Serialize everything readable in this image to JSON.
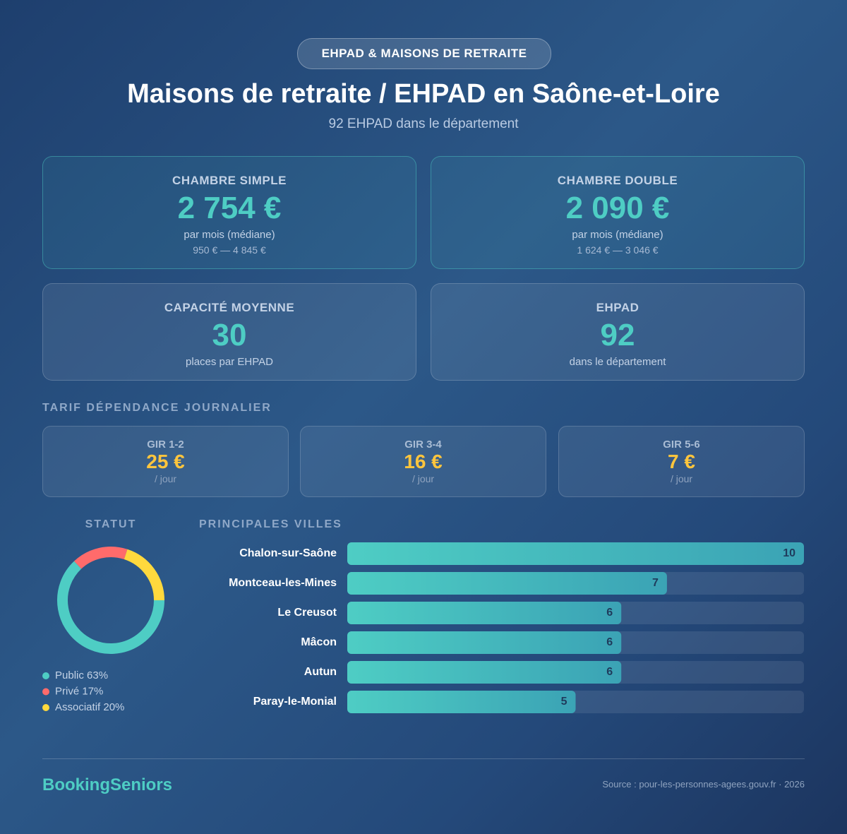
{
  "badge": "EHPAD & MAISONS DE RETRAITE",
  "title": "Maisons de retraite / EHPAD en Saône-et-Loire",
  "subtitle": "92 EHPAD dans le département",
  "cards": [
    {
      "label": "CHAMBRE SIMPLE",
      "value": "2 754 €",
      "note": "par mois (médiane)",
      "range": "950 € — 4 845 €"
    },
    {
      "label": "CHAMBRE DOUBLE",
      "value": "2 090 €",
      "note": "par mois (médiane)",
      "range": "1 624 € — 3 046 €"
    },
    {
      "label": "CAPACITÉ MOYENNE",
      "value": "30",
      "note": "places par EHPAD"
    },
    {
      "label": "EHPAD",
      "value": "92",
      "note": "dans le département"
    }
  ],
  "dependency": {
    "title": "TARIF DÉPENDANCE JOURNALIER",
    "items": [
      {
        "label": "GIR 1-2",
        "value": "25 €",
        "unit": "/ jour"
      },
      {
        "label": "GIR 3-4",
        "value": "16 €",
        "unit": "/ jour"
      },
      {
        "label": "GIR 5-6",
        "value": "7 €",
        "unit": "/ jour"
      }
    ]
  },
  "chart_data": [
    {
      "type": "pie",
      "title": "STATUT",
      "categories": [
        "Public",
        "Privé",
        "Associatif"
      ],
      "values": [
        63,
        17,
        20
      ],
      "value_labels": [
        "63%",
        "17%",
        "20%"
      ],
      "colors": [
        "#4ecdc4",
        "#ff6b6b",
        "#ffd93d"
      ]
    },
    {
      "type": "bar",
      "orientation": "horizontal",
      "title": "PRINCIPALES VILLES",
      "categories": [
        "Chalon-sur-Saône",
        "Montceau-les-Mines",
        "Le Creusot",
        "Mâcon",
        "Autun",
        "Paray-le-Monial"
      ],
      "values": [
        10,
        7,
        6,
        6,
        6,
        5
      ],
      "color": "#4ecdc4"
    }
  ],
  "footer": {
    "brand": "BookingSeniors",
    "source": "Source : pour-les-personnes-agees.gouv.fr · 2026"
  }
}
